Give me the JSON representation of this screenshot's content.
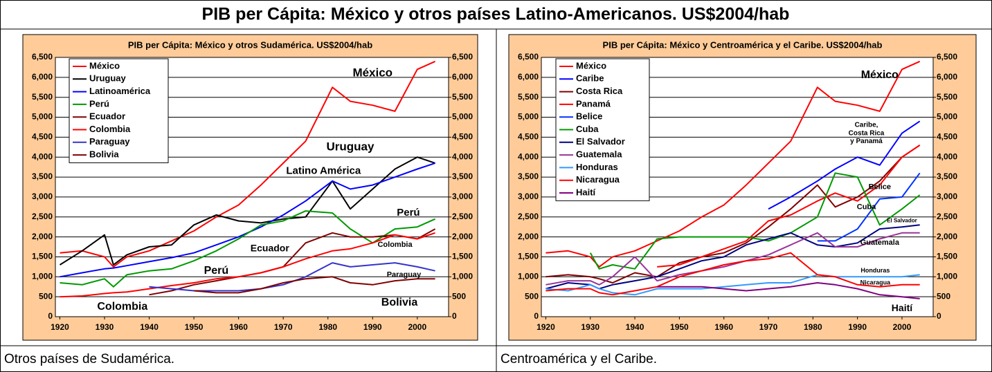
{
  "title": "PIB per Cápita: México y otros países Latino-Americanos. US$2004/hab",
  "captions": [
    "Otros países de Sudamérica.",
    "Centroamérica y el Caribe."
  ],
  "chart_data": [
    {
      "type": "line",
      "title": "PIB per Cápita: México y otros Sudamérica. US$2004/hab",
      "x": [
        1920,
        1925,
        1930,
        1932,
        1935,
        1940,
        1945,
        1950,
        1955,
        1960,
        1965,
        1970,
        1975,
        1981,
        1985,
        1990,
        1995,
        2000,
        2004
      ],
      "xlim": [
        1919,
        2007
      ],
      "xticks": [
        1920,
        1930,
        1940,
        1950,
        1960,
        1970,
        1980,
        1990,
        2000
      ],
      "ylim": [
        0,
        6500
      ],
      "yticks": [
        0,
        500,
        {
          "value": 1000,
          "label": "1,000"
        },
        {
          "value": 1500,
          "label": "1,500"
        },
        {
          "value": 2000,
          "label": "2,000"
        },
        {
          "value": 2500,
          "label": "2,500"
        },
        {
          "value": 3000,
          "label": "3,000"
        },
        {
          "value": 3500,
          "label": "3,500"
        },
        {
          "value": 4000,
          "label": "4,000"
        },
        {
          "value": 4500,
          "label": "4,500"
        },
        {
          "value": 5000,
          "label": "5,000"
        },
        {
          "value": 5500,
          "label": "5,500"
        },
        {
          "value": 6000,
          "label": "6,000"
        },
        {
          "value": 6500,
          "label": "6,500"
        }
      ],
      "y2lim": [
        0,
        6500
      ],
      "y2ticks": [
        0,
        500,
        {
          "value": 1000,
          "label": "1,000"
        },
        {
          "value": 1500,
          "label": "1,500"
        },
        {
          "value": 2000,
          "label": "2,000"
        },
        {
          "value": 2500,
          "label": "2,500"
        },
        {
          "value": 3000,
          "label": "3,000"
        },
        {
          "value": 3500,
          "label": "3,500"
        },
        {
          "value": 4000,
          "label": "4,000"
        },
        {
          "value": 4500,
          "label": "4,500"
        },
        {
          "value": 5000,
          "label": "5,000"
        },
        {
          "value": 5500,
          "label": "5,500"
        },
        {
          "value": 6000,
          "label": "6,000"
        },
        {
          "value": 6500,
          "label": "6,500"
        }
      ],
      "grid": true,
      "legend": "top-left",
      "series": [
        {
          "name": "México",
          "color": "#ff0000",
          "values": [
            1600,
            1650,
            1500,
            1250,
            1500,
            1650,
            1900,
            2150,
            2500,
            2800,
            3300,
            3850,
            4400,
            5750,
            5400,
            5300,
            5150,
            6200,
            6400
          ]
        },
        {
          "name": "Uruguay",
          "color": "#000000",
          "values": [
            1300,
            1650,
            2050,
            1300,
            1550,
            1750,
            1800,
            2300,
            2550,
            2400,
            2350,
            2450,
            2500,
            3400,
            2700,
            3200,
            3700,
            4000,
            3850
          ]
        },
        {
          "name": "Latinoamérica",
          "color": "#0000ff",
          "values": [
            1000,
            1100,
            1200,
            1220,
            1280,
            1380,
            1480,
            1600,
            1800,
            2000,
            2250,
            2550,
            2900,
            3400,
            3200,
            3300,
            3500,
            3700,
            3850
          ]
        },
        {
          "name": "Perú",
          "color": "#009900",
          "values": [
            850,
            800,
            950,
            750,
            1050,
            1150,
            1200,
            1400,
            1650,
            1950,
            2300,
            2400,
            2650,
            2600,
            2200,
            1850,
            2200,
            2250,
            2450
          ]
        },
        {
          "name": "Ecuador",
          "color": "#800000",
          "values": [
            null,
            null,
            null,
            null,
            null,
            550,
            650,
            800,
            900,
            1000,
            1100,
            1250,
            1850,
            2100,
            2000,
            2000,
            2050,
            1950,
            2200
          ]
        },
        {
          "name": "Colombia",
          "color": "#ff0000",
          "values": [
            500,
            520,
            580,
            600,
            620,
            700,
            780,
            850,
            950,
            1000,
            1100,
            1250,
            1450,
            1650,
            1700,
            1850,
            2050,
            1950,
            2100
          ]
        },
        {
          "name": "Paraguay",
          "color": "#3333cc",
          "values": [
            null,
            null,
            null,
            null,
            null,
            750,
            700,
            650,
            650,
            650,
            700,
            800,
            1000,
            1350,
            1250,
            1300,
            1350,
            1250,
            1150
          ]
        },
        {
          "name": "Bolivia",
          "color": "#800000",
          "values": [
            null,
            null,
            null,
            null,
            null,
            null,
            null,
            650,
            600,
            600,
            700,
            850,
            950,
            1000,
            850,
            800,
            900,
            950,
            950
          ]
        }
      ],
      "annotations": [
        {
          "text": "México",
          "x": 1990,
          "y": 6100
        },
        {
          "text": "Uruguay",
          "x": 1985,
          "y": 4250
        },
        {
          "text": "Latino América",
          "x": 1979,
          "y": 3650
        },
        {
          "text": "Perú",
          "x": 1998,
          "y": 2600
        },
        {
          "text": "Ecuador",
          "x": 1967,
          "y": 1700
        },
        {
          "text": "Colombia",
          "x": 1995,
          "y": 1800
        },
        {
          "text": "Perú",
          "x": 1955,
          "y": 1150
        },
        {
          "text": "Paraguay",
          "x": 1997,
          "y": 1050
        },
        {
          "text": "Colombia",
          "x": 1934,
          "y": 250
        },
        {
          "text": "Bolivia",
          "x": 1996,
          "y": 350
        }
      ]
    },
    {
      "type": "line",
      "title": "PIB per Cápita: México y Centroamérica y el Caribe. US$2004/hab",
      "x": [
        1920,
        1925,
        1930,
        1932,
        1935,
        1940,
        1945,
        1950,
        1955,
        1960,
        1965,
        1970,
        1975,
        1981,
        1985,
        1990,
        1995,
        2000,
        2004
      ],
      "xlim": [
        1919,
        2007
      ],
      "xticks": [
        1920,
        1930,
        1940,
        1950,
        1960,
        1970,
        1980,
        1990,
        2000
      ],
      "ylim": [
        0,
        6500
      ],
      "yticks": [
        0,
        500,
        {
          "value": 1000,
          "label": "1,000"
        },
        {
          "value": 1500,
          "label": "1,500"
        },
        {
          "value": 2000,
          "label": "2,000"
        },
        {
          "value": 2500,
          "label": "2,500"
        },
        {
          "value": 3000,
          "label": "3,000"
        },
        {
          "value": 3500,
          "label": "3,500"
        },
        {
          "value": 4000,
          "label": "4,000"
        },
        {
          "value": 4500,
          "label": "4,500"
        },
        {
          "value": 5000,
          "label": "5,000"
        },
        {
          "value": 5500,
          "label": "5,500"
        },
        {
          "value": 6000,
          "label": "6,000"
        },
        {
          "value": 6500,
          "label": "6,500"
        }
      ],
      "y2lim": [
        0,
        6500
      ],
      "y2ticks": [
        0,
        500,
        {
          "value": 1000,
          "label": "1,000"
        },
        {
          "value": 1500,
          "label": "1,500"
        },
        {
          "value": 2000,
          "label": "2,000"
        },
        {
          "value": 2500,
          "label": "2,500"
        },
        {
          "value": 3000,
          "label": "3,000"
        },
        {
          "value": 3500,
          "label": "3,500"
        },
        {
          "value": 4000,
          "label": "4,000"
        },
        {
          "value": 4500,
          "label": "4,500"
        },
        {
          "value": 5000,
          "label": "5,000"
        },
        {
          "value": 5500,
          "label": "5,500"
        },
        {
          "value": 6000,
          "label": "6,000"
        },
        {
          "value": 6500,
          "label": "6,500"
        }
      ],
      "grid": true,
      "legend": "top-left",
      "series": [
        {
          "name": "México",
          "color": "#ff0000",
          "values": [
            1600,
            1650,
            1500,
            1250,
            1500,
            1650,
            1900,
            2150,
            2500,
            2800,
            3300,
            3850,
            4400,
            5750,
            5400,
            5300,
            5150,
            6200,
            6400
          ]
        },
        {
          "name": "Caribe",
          "color": "#0000ff",
          "values": [
            null,
            null,
            null,
            null,
            null,
            null,
            null,
            null,
            null,
            null,
            null,
            2700,
            3000,
            3400,
            3700,
            4000,
            3800,
            4600,
            4900
          ]
        },
        {
          "name": "Costa Rica",
          "color": "#800000",
          "values": [
            1000,
            1050,
            1000,
            950,
            850,
            1100,
            1000,
            1350,
            1500,
            1600,
            1850,
            2250,
            2700,
            3300,
            2750,
            3000,
            3400,
            4000,
            4300
          ]
        },
        {
          "name": "Panamá",
          "color": "#ff0000",
          "values": [
            null,
            null,
            null,
            null,
            null,
            null,
            1250,
            1300,
            1500,
            1700,
            1900,
            2400,
            2550,
            2900,
            3100,
            2900,
            3300,
            4000,
            4300
          ]
        },
        {
          "name": "Belice",
          "color": "#0033ff",
          "values": [
            null,
            null,
            null,
            null,
            null,
            null,
            null,
            null,
            null,
            null,
            null,
            null,
            null,
            1900,
            1900,
            2200,
            2950,
            3000,
            3600
          ]
        },
        {
          "name": "Cuba",
          "color": "#009900",
          "values": [
            null,
            null,
            1600,
            1200,
            1300,
            1200,
            1950,
            2000,
            2000,
            2000,
            2000,
            1900,
            2100,
            2500,
            3600,
            3500,
            2300,
            2700,
            3050
          ]
        },
        {
          "name": "El Salvador",
          "color": "#000080",
          "values": [
            700,
            850,
            800,
            700,
            800,
            900,
            1000,
            1200,
            1400,
            1500,
            1800,
            1950,
            2100,
            1800,
            1750,
            1850,
            2200,
            2250,
            2300
          ]
        },
        {
          "name": "Guatemala",
          "color": "#993399",
          "values": [
            800,
            900,
            900,
            800,
            1000,
            1500,
            900,
            1050,
            1150,
            1250,
            1400,
            1550,
            1800,
            2100,
            1750,
            1750,
            1950,
            2100,
            2100
          ]
        },
        {
          "name": "Honduras",
          "color": "#3399ff",
          "values": [
            700,
            650,
            800,
            700,
            600,
            550,
            700,
            700,
            700,
            750,
            800,
            850,
            850,
            1050,
            1000,
            1000,
            1000,
            1000,
            1050
          ]
        },
        {
          "name": "Nicaragua",
          "color": "#ff0000",
          "values": [
            650,
            700,
            700,
            600,
            550,
            650,
            750,
            1000,
            1150,
            1300,
            1400,
            1450,
            1600,
            1050,
            1000,
            800,
            750,
            800,
            800
          ]
        },
        {
          "name": "Haití",
          "color": "#800080",
          "values": [
            null,
            null,
            null,
            null,
            null,
            null,
            750,
            750,
            750,
            700,
            650,
            700,
            750,
            850,
            800,
            700,
            550,
            500,
            450
          ]
        }
      ],
      "annotations": [
        {
          "text": "México",
          "x": 1995,
          "y": 6050
        },
        {
          "text": "Caribe,",
          "x": 1992,
          "y": 4800
        },
        {
          "text": "Costa Rica",
          "x": 1992,
          "y": 4600
        },
        {
          "text": "y Panamá",
          "x": 1992,
          "y": 4400
        },
        {
          "text": "Belice",
          "x": 1995,
          "y": 3250
        },
        {
          "text": "Cuba",
          "x": 1992,
          "y": 2750
        },
        {
          "text": "El Salvador",
          "x": 2000,
          "y": 2400
        },
        {
          "text": "Guatemala",
          "x": 1995,
          "y": 1850
        },
        {
          "text": "Honduras",
          "x": 1994,
          "y": 1150
        },
        {
          "text": "Nicaragua",
          "x": 1994,
          "y": 850
        },
        {
          "text": "Haití",
          "x": 2000,
          "y": 200
        }
      ]
    }
  ]
}
